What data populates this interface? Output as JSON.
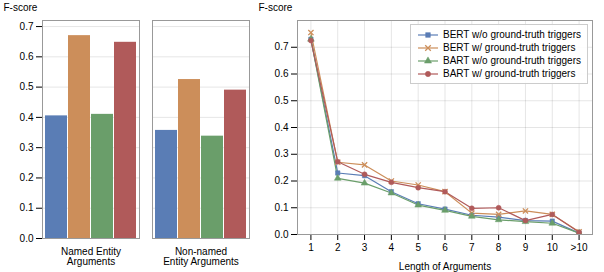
{
  "chart_data": [
    {
      "type": "bar",
      "categories": [
        "Named Entity\nArguments",
        "Non-named\nEntity Arguments"
      ],
      "series": [
        {
          "name": "BERT w/o ground-truth triggers",
          "color": "#5a7db5",
          "values": [
            0.405,
            0.357
          ]
        },
        {
          "name": "BERT w/ ground-truth triggers",
          "color": "#cc8e5a",
          "values": [
            0.67,
            0.525
          ]
        },
        {
          "name": "BART w/o ground-truth triggers",
          "color": "#6a9e6a",
          "values": [
            0.41,
            0.338
          ]
        },
        {
          "name": "BART w/ ground-truth triggers",
          "color": "#b05a5a",
          "values": [
            0.648,
            0.49
          ]
        }
      ],
      "ylabel": "F-score",
      "ylim": [
        0.0,
        0.72
      ],
      "yticks": [
        {
          "value": 0,
          "label": "0.0"
        },
        0.1,
        0.2,
        0.3,
        0.4,
        0.5,
        0.6,
        0.7
      ],
      "grid": true
    },
    {
      "type": "line",
      "x": [
        1,
        2,
        3,
        4,
        5,
        6,
        7,
        8,
        9,
        10,
        11
      ],
      "xlim": [
        0.5,
        11.5
      ],
      "xticks": [
        1,
        2,
        3,
        4,
        5,
        6,
        7,
        8,
        9,
        10,
        {
          "value": 11,
          "label": ">10"
        }
      ],
      "series": [
        {
          "name": "BERT w/o ground-truth triggers",
          "color": "#5a7db5",
          "marker": "square",
          "values": [
            0.73,
            0.23,
            0.22,
            0.16,
            0.115,
            0.095,
            0.072,
            0.065,
            0.052,
            0.05,
            0.005
          ]
        },
        {
          "name": "BERT w/ ground-truth triggers",
          "color": "#cc8e5a",
          "marker": "x",
          "values": [
            0.755,
            0.27,
            0.26,
            0.2,
            0.185,
            0.16,
            0.08,
            0.075,
            0.088,
            0.075,
            0.01
          ]
        },
        {
          "name": "BART w/o ground-truth triggers",
          "color": "#6a9e6a",
          "marker": "triangle",
          "values": [
            0.73,
            0.21,
            0.192,
            0.155,
            0.11,
            0.09,
            0.068,
            0.055,
            0.048,
            0.042,
            0.005
          ]
        },
        {
          "name": "BART w/ ground-truth triggers",
          "color": "#b05a5a",
          "marker": "circle",
          "values": [
            0.725,
            0.272,
            0.225,
            0.195,
            0.175,
            0.16,
            0.098,
            0.1,
            0.052,
            0.075,
            0.008
          ]
        }
      ],
      "xlabel": "Length of Arguments",
      "ylabel": "F-score",
      "ylim": [
        0.0,
        0.8
      ],
      "yticks": [
        {
          "value": 0,
          "label": "0.0"
        },
        0.1,
        0.2,
        0.3,
        0.4,
        0.5,
        0.6,
        0.7
      ],
      "grid": true,
      "legend": "upper right"
    }
  ]
}
